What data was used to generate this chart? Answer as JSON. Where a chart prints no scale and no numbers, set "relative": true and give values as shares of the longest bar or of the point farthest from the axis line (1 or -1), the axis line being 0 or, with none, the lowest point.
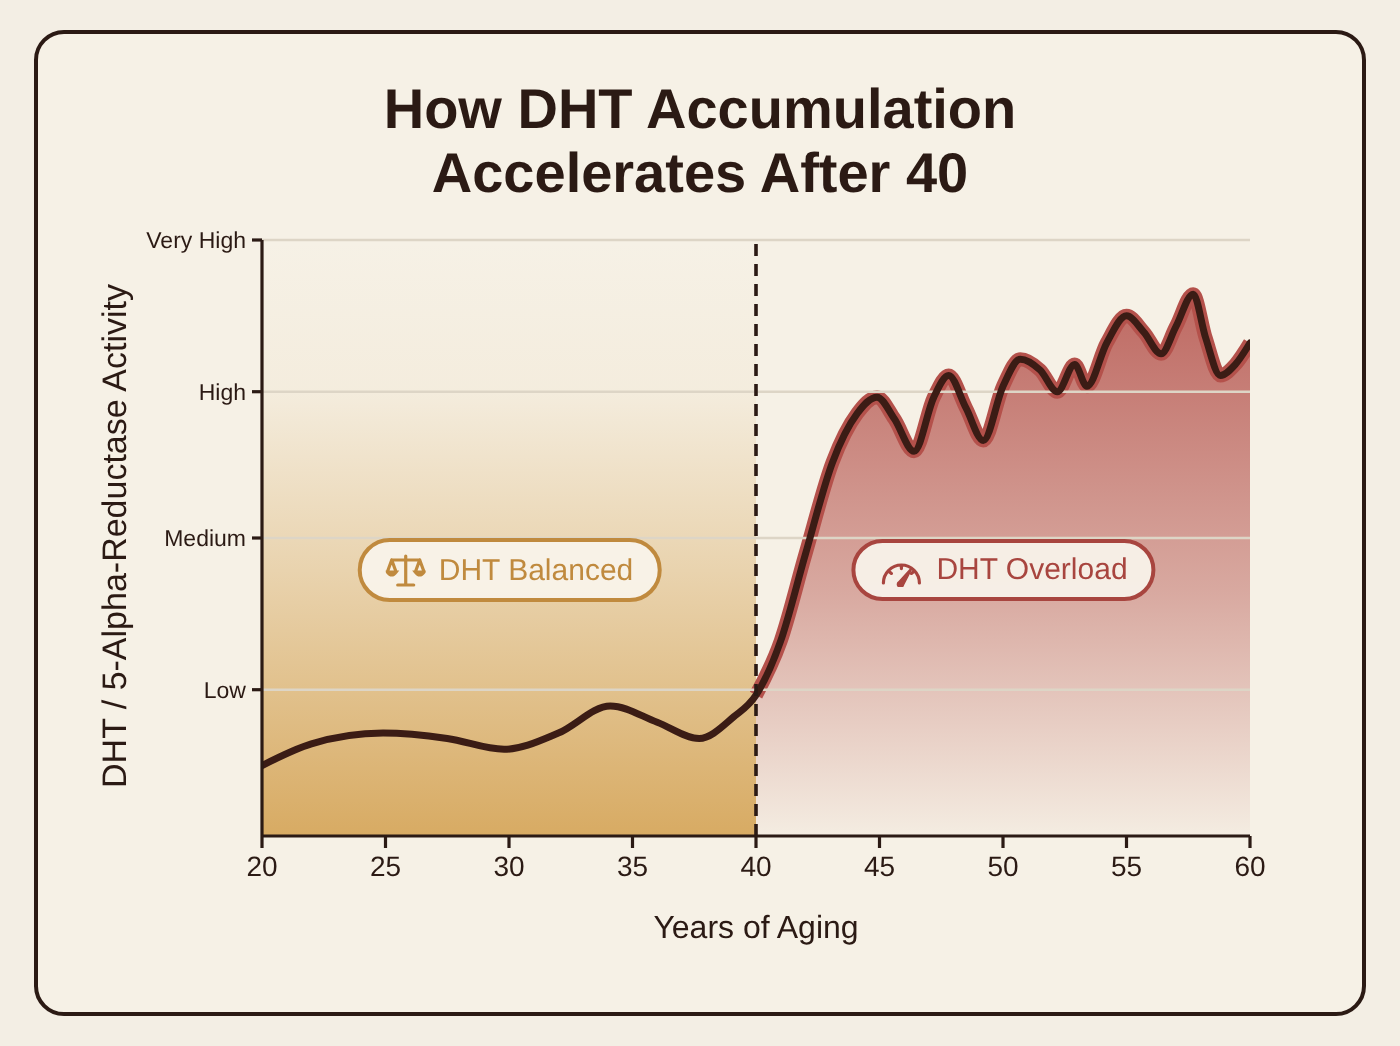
{
  "chart_data": {
    "type": "line",
    "title": "How DHT Accumulation Accelerates After 40",
    "xlabel": "Years of Aging",
    "ylabel": "DHT / 5-Alpha-Reductase Activity",
    "relative": true,
    "xlim": [
      20,
      60
    ],
    "xticks": [
      20,
      25,
      30,
      35,
      40,
      45,
      50,
      55,
      60
    ],
    "series": [
      {
        "type": "area",
        "color": "#b4514b",
        "x": [
          40,
          41,
          42,
          43.1,
          44.1,
          44.9,
          45.6,
          46.4,
          47.2,
          47.8,
          48.5,
          49.2,
          50,
          50.7,
          51.5,
          52.2,
          52.9,
          53.4,
          54.2,
          55,
          55.7,
          56.4,
          57,
          57.7,
          58.2,
          58.8,
          59.4,
          60
        ],
        "values": [
          0.26,
          0.36,
          0.52,
          0.69,
          0.78,
          0.81,
          0.77,
          0.71,
          0.81,
          0.85,
          0.79,
          0.73,
          0.83,
          0.88,
          0.86,
          0.82,
          0.87,
          0.83,
          0.91,
          0.96,
          0.93,
          0.89,
          0.94,
          1,
          0.92,
          0.85,
          0.87,
          0.91
        ]
      },
      {
        "color": "#3b1c15",
        "x": [
          20,
          22,
          24.9,
          27.5,
          29.8,
          32,
          34.1,
          36,
          37.7,
          39.1,
          40,
          41,
          42,
          43.1,
          44.1,
          44.9,
          45.6,
          46.4,
          47.2,
          47.8,
          48.5,
          49.2,
          50,
          50.7,
          51.5,
          52.2,
          52.9,
          53.4,
          54.2,
          55,
          55.7,
          56.4,
          57,
          57.7,
          58.2,
          58.8,
          59.4,
          60
        ],
        "values": [
          0.13,
          0.17,
          0.19,
          0.18,
          0.16,
          0.19,
          0.24,
          0.21,
          0.18,
          0.22,
          0.26,
          0.36,
          0.52,
          0.69,
          0.78,
          0.81,
          0.77,
          0.71,
          0.81,
          0.85,
          0.79,
          0.73,
          0.83,
          0.88,
          0.86,
          0.82,
          0.87,
          0.83,
          0.91,
          0.96,
          0.93,
          0.89,
          0.94,
          1,
          0.92,
          0.85,
          0.87,
          0.91
        ]
      }
    ],
    "bands": [
      {
        "axis": "x",
        "from": 20,
        "to": 40,
        "color": "#d6a75c"
      }
    ],
    "ref_lines": [
      {
        "axis": "x",
        "value": 40,
        "color": "#2b1a14",
        "line_style": "dashed"
      },
      {
        "axis": "y",
        "value": 0.27,
        "label": "Low",
        "color": "#ddd5c6"
      },
      {
        "axis": "y",
        "value": 0.55,
        "label": "Medium",
        "color": "#ddd5c6"
      },
      {
        "axis": "y",
        "value": 0.82,
        "label": "High",
        "color": "#ddd5c6"
      },
      {
        "axis": "y",
        "value": 1.1,
        "label": "Very High",
        "color": "#ddd5c6"
      }
    ],
    "annotations": [
      "DHT Balanced",
      "DHT Overload"
    ]
  }
}
